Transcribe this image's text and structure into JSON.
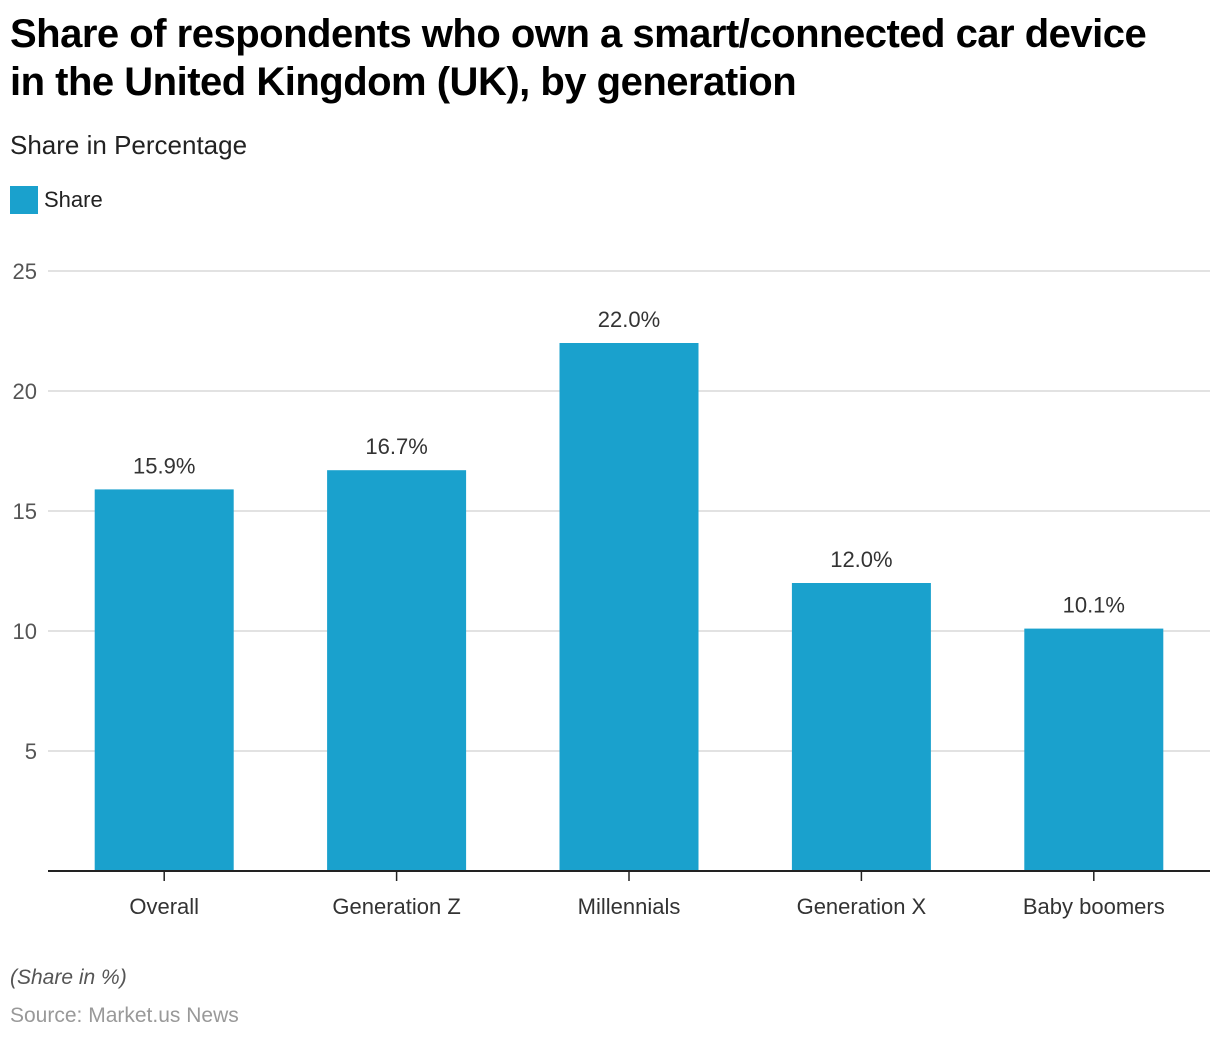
{
  "colors": {
    "bar": "#1aa1cd",
    "grid": "#d9d9d9",
    "axis": "#222222"
  },
  "chart_data": {
    "type": "bar",
    "title": "Share of respondents who own a smart/connected car device in the United Kingdom (UK), by generation",
    "subtitle": "Share in Percentage",
    "legend": {
      "entries": [
        "Share"
      ],
      "placement": "top-left"
    },
    "xlabel": "",
    "ylabel": "",
    "categories": [
      "Overall",
      "Generation Z",
      "Millennials",
      "Generation X",
      "Baby boomers"
    ],
    "series": [
      {
        "name": "Share",
        "values": [
          15.9,
          16.7,
          22.0,
          12.0,
          10.1
        ]
      }
    ],
    "data_labels": [
      "15.9%",
      "16.7%",
      "22.0%",
      "12.0%",
      "10.1%"
    ],
    "yticks": [
      5,
      10,
      15,
      20,
      25
    ],
    "ylim": [
      0,
      25
    ],
    "grid": true,
    "footnote": "(Share in %)",
    "source": "Source: Market.us News"
  }
}
